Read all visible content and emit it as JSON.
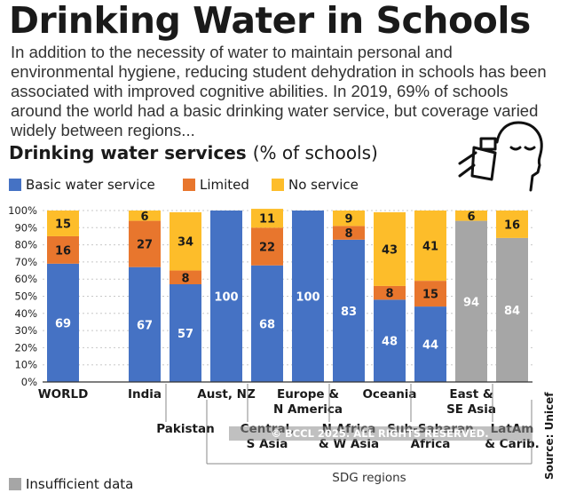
{
  "header": {
    "title": "Drinking Water in Schools",
    "intro": "In addition to the necessity of water to maintain personal and environmental hygiene, reducing student dehydration in schools has been associated with improved cognitive abilities. In 2019, 69% of schools around the world had a basic drinking water service, but coverage varied widely between regions..."
  },
  "subtitle": {
    "main": "Drinking water services",
    "unit": "(% of schools)"
  },
  "legend": {
    "basic": "Basic water service",
    "limited": "Limited",
    "none": "No service",
    "insufficient": "Insufficient data"
  },
  "colors": {
    "basic": "#4572c4",
    "limited": "#e8762d",
    "none": "#fdbd2a",
    "insufficient": "#a6a6a6"
  },
  "footer": {
    "group_label": "SDG regions",
    "source": "Source: Unicef",
    "copyright": "© BCCL 2025. ALL RIGHTS RESERVED."
  },
  "chart_data": {
    "type": "bar",
    "stacked": true,
    "title": "Drinking water services",
    "ylabel": "% of schools",
    "ylim": [
      0,
      100
    ],
    "yticks": [
      "0%",
      "10%",
      "20%",
      "30%",
      "40%",
      "50%",
      "60%",
      "70%",
      "80%",
      "90%",
      "100%"
    ],
    "categories": [
      "WORLD",
      "India",
      "Pakistan",
      "Aust, NZ",
      "Central, S Asia",
      "Europe & N America",
      "N Africa & W Asia",
      "Oceania",
      "Sub-Saharan Africa",
      "East & SE Asia",
      "LatAm & Carib."
    ],
    "category_labels": [
      [
        "WORLD"
      ],
      [
        "India"
      ],
      [
        "Pakistan"
      ],
      [
        "Aust, NZ"
      ],
      [
        "Central,",
        "S Asia"
      ],
      [
        "Europe &",
        "N America"
      ],
      [
        "N Africa",
        "& W Asia"
      ],
      [
        "Oceania"
      ],
      [
        "Sub-Saharan",
        "Africa"
      ],
      [
        "East &",
        "SE Asia"
      ],
      [
        "LatAm",
        "& Carib."
      ]
    ],
    "series": [
      {
        "name": "Basic water service",
        "key": "basic",
        "values": [
          69,
          67,
          57,
          100,
          68,
          100,
          83,
          48,
          44,
          null,
          null
        ]
      },
      {
        "name": "Insufficient data",
        "key": "insufficient",
        "values": [
          null,
          null,
          null,
          null,
          null,
          null,
          null,
          null,
          null,
          94,
          84
        ]
      },
      {
        "name": "Limited",
        "key": "limited",
        "values": [
          16,
          27,
          8,
          0,
          22,
          0,
          8,
          8,
          15,
          0,
          0
        ]
      },
      {
        "name": "No service",
        "key": "none",
        "values": [
          15,
          6,
          34,
          0,
          11,
          0,
          9,
          43,
          41,
          6,
          16
        ]
      }
    ],
    "group": {
      "label": "SDG regions",
      "members": [
        "Aust, NZ",
        "Central, S Asia",
        "Europe & N America",
        "N Africa & W Asia",
        "Oceania",
        "Sub-Saharan Africa",
        "East & SE Asia",
        "LatAm & Carib."
      ]
    }
  }
}
